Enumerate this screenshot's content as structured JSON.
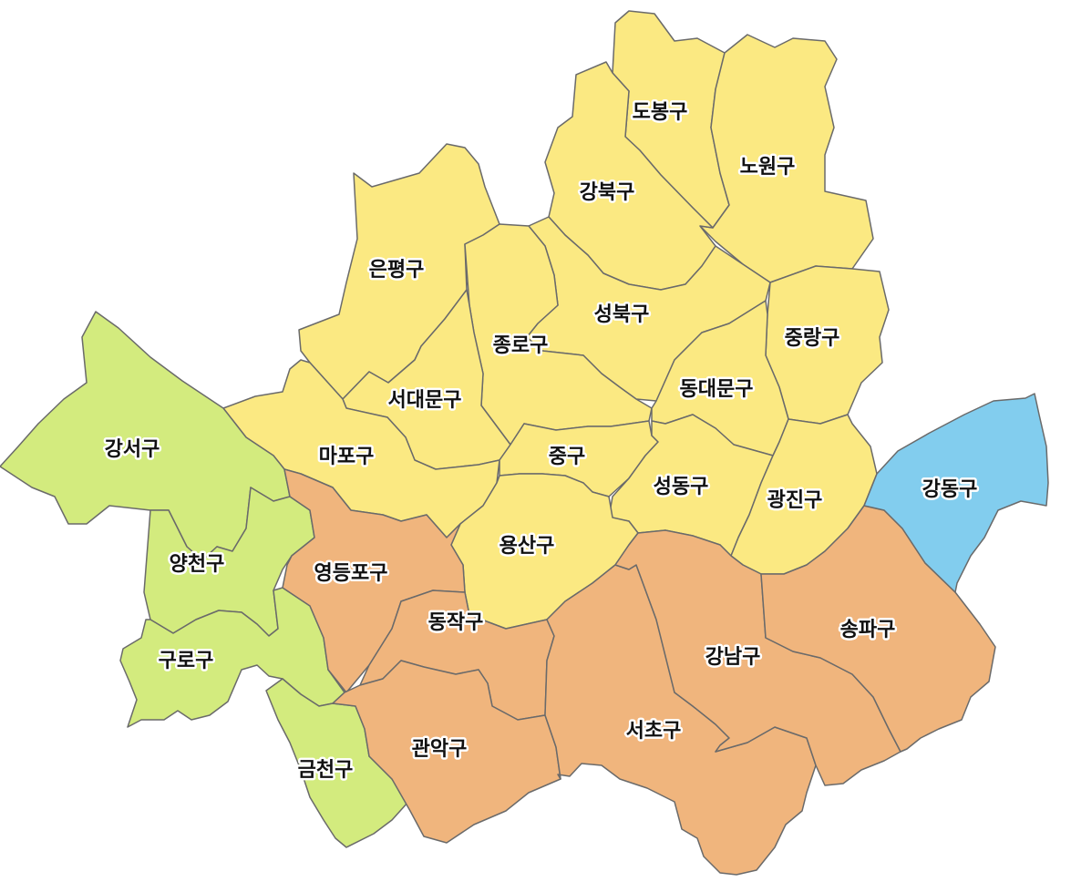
{
  "colors": {
    "yellow": "#fbe982",
    "green": "#d3eb7e",
    "orange": "#f0b57d",
    "blue": "#82cdee",
    "border": "#6a6a6a"
  },
  "districts": {
    "dobong": {
      "name": "도봉구",
      "color": "yellow"
    },
    "nowon": {
      "name": "노원구",
      "color": "yellow"
    },
    "gangbuk": {
      "name": "강북구",
      "color": "yellow"
    },
    "eunpyeong": {
      "name": "은평구",
      "color": "yellow"
    },
    "seongbuk": {
      "name": "성북구",
      "color": "yellow"
    },
    "jungnang": {
      "name": "중랑구",
      "color": "yellow"
    },
    "jongno": {
      "name": "종로구",
      "color": "yellow"
    },
    "dongdaemun": {
      "name": "동대문구",
      "color": "yellow"
    },
    "seodaemun": {
      "name": "서대문구",
      "color": "yellow"
    },
    "mapo": {
      "name": "마포구",
      "color": "yellow"
    },
    "jung": {
      "name": "중구",
      "color": "yellow"
    },
    "seongdong": {
      "name": "성동구",
      "color": "yellow"
    },
    "gwangjin": {
      "name": "광진구",
      "color": "yellow"
    },
    "yongsan": {
      "name": "용산구",
      "color": "yellow"
    },
    "gangseo": {
      "name": "강서구",
      "color": "green"
    },
    "yangcheon": {
      "name": "양천구",
      "color": "green"
    },
    "guro": {
      "name": "구로구",
      "color": "green"
    },
    "geumcheon": {
      "name": "금천구",
      "color": "green"
    },
    "yeongdeungpo": {
      "name": "영등포구",
      "color": "orange"
    },
    "dongjak": {
      "name": "동작구",
      "color": "orange"
    },
    "gwanak": {
      "name": "관악구",
      "color": "orange"
    },
    "seocho": {
      "name": "서초구",
      "color": "orange"
    },
    "gangnam": {
      "name": "강남구",
      "color": "orange"
    },
    "songpa": {
      "name": "송파구",
      "color": "orange"
    },
    "gangdong": {
      "name": "강동구",
      "color": "blue"
    }
  }
}
